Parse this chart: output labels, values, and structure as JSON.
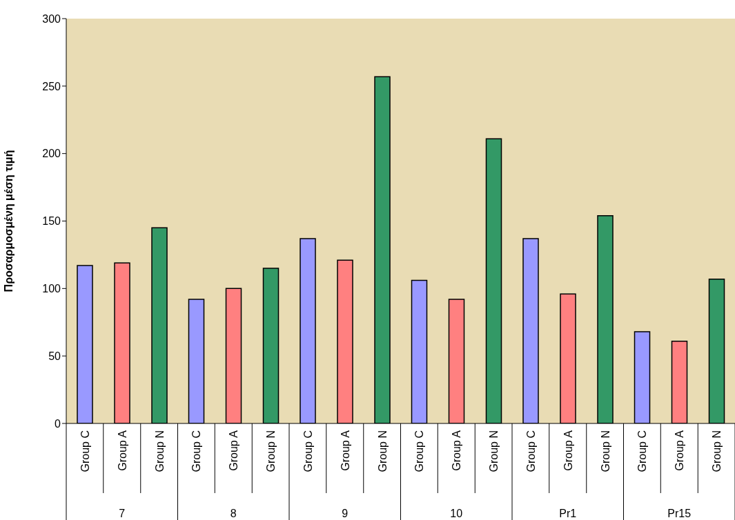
{
  "chart_data": {
    "type": "bar",
    "ylabel": "Προσαρμοσμένη μέση τιμή",
    "categories": [
      "7",
      "8",
      "9",
      "10",
      "Pr1",
      "Pr15"
    ],
    "series": [
      {
        "name": "Group C",
        "color": "#9999ff",
        "values": [
          117,
          92,
          137,
          106,
          137,
          68
        ]
      },
      {
        "name": "Group A",
        "color": "#ff8080",
        "values": [
          119,
          100,
          121,
          92,
          96,
          61
        ]
      },
      {
        "name": "Group N",
        "color": "#339966",
        "values": [
          145,
          115,
          257,
          211,
          154,
          107
        ]
      }
    ],
    "ylim": [
      0,
      300
    ],
    "yticks": [
      0,
      50,
      100,
      150,
      200,
      250,
      300
    ]
  }
}
